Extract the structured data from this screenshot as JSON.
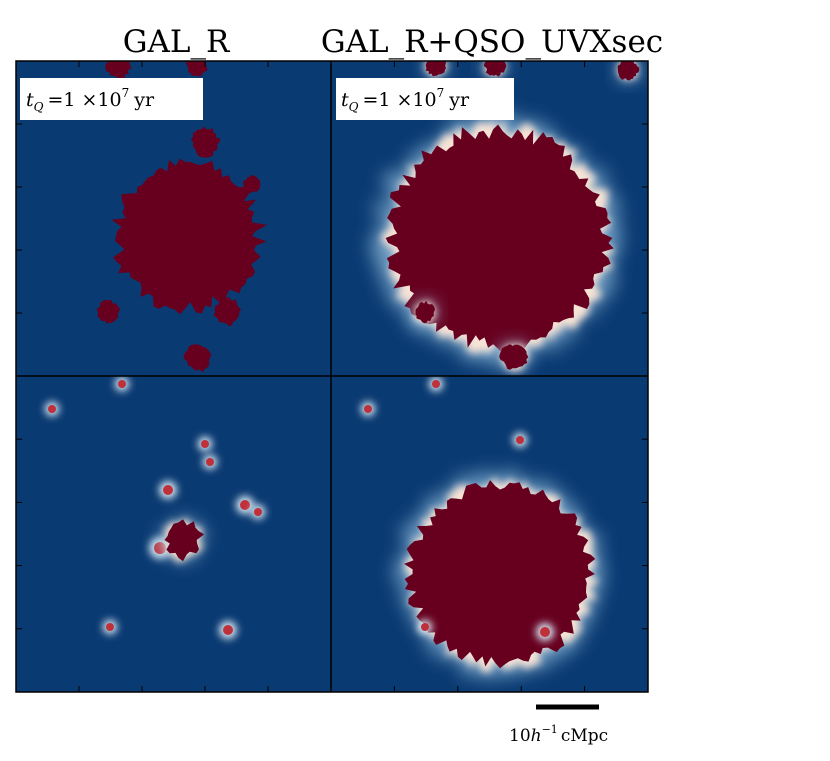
{
  "columns": [
    "GAL_R",
    "GAL_R+QSO_UVXsec"
  ],
  "panels": [
    {
      "symbol": "t",
      "subscript": "Q",
      "value": "=1 ×10",
      "exponent": "7",
      "unit": "yr"
    },
    {
      "symbol": "t",
      "subscript": "Q",
      "value": "=1 ×10",
      "exponent": "7",
      "unit": "yr"
    }
  ],
  "scale_bar": {
    "value": "10",
    "symbol": "h",
    "exponent": "−1",
    "unit": "cMpc"
  }
}
